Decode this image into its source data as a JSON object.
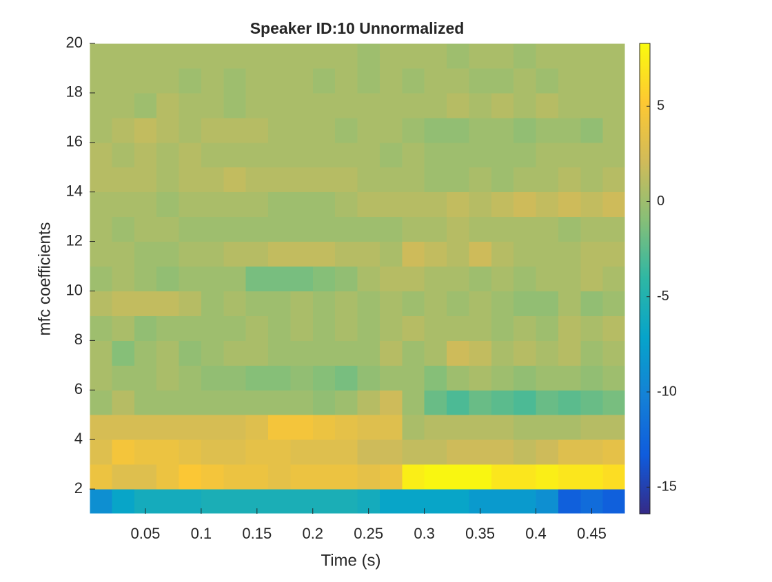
{
  "chart_data": {
    "type": "heatmap",
    "title": "Speaker ID:10 Unnormalized",
    "xlabel": "Time (s)",
    "ylabel": "mfc coefficients",
    "x": [
      0.01,
      0.03,
      0.05,
      0.07,
      0.09,
      0.11,
      0.13,
      0.15,
      0.17,
      0.19,
      0.21,
      0.23,
      0.25,
      0.27,
      0.29,
      0.31,
      0.33,
      0.35,
      0.37,
      0.39,
      0.41,
      0.43,
      0.45,
      0.47
    ],
    "y": [
      1.5,
      2.5,
      3.5,
      4.5,
      5.5,
      6.5,
      7.5,
      8.5,
      9.5,
      10.5,
      11.5,
      12.5,
      13.5,
      14.5,
      15.5,
      16.5,
      17.5,
      18.5,
      19.5
    ],
    "z": [
      [
        -9,
        -7,
        -6,
        -6,
        -6,
        -5.5,
        -5.5,
        -5.5,
        -5.5,
        -5.5,
        -5.5,
        -5.5,
        -6,
        -7,
        -7,
        -7,
        -7,
        -8,
        -8,
        -8,
        -9,
        -13,
        -12,
        -13
      ],
      [
        4,
        3,
        3,
        4,
        5,
        4.5,
        4,
        4,
        3.5,
        4,
        4,
        4,
        3.5,
        4,
        7.5,
        8,
        8,
        8,
        7,
        7,
        7.5,
        7,
        7,
        6.5
      ],
      [
        3,
        4.5,
        4,
        4,
        3.5,
        3,
        3,
        3.5,
        3.5,
        3,
        3,
        3,
        2,
        2,
        1.5,
        1.5,
        2,
        2,
        2,
        1.5,
        2,
        3,
        3,
        3.5
      ],
      [
        2.5,
        2.5,
        2.5,
        2.5,
        2.5,
        2.5,
        2.5,
        3,
        4.5,
        4.5,
        4,
        3.5,
        3,
        3,
        0.5,
        1,
        1,
        1,
        1,
        0.5,
        0.5,
        0.5,
        1,
        1
      ],
      [
        0,
        1,
        0,
        0,
        0,
        0,
        0,
        0,
        0,
        0,
        -0.5,
        0,
        1,
        2,
        0,
        -2,
        -3,
        -2,
        -2.5,
        -3,
        -2,
        -2.5,
        -2,
        -1.5
      ],
      [
        0.5,
        0,
        0,
        0.5,
        0,
        -0.5,
        -0.5,
        -1,
        -1,
        -0.5,
        -1,
        -1.5,
        -0.5,
        0,
        0,
        -1,
        0,
        0.5,
        0,
        -0.5,
        0,
        0,
        -0.5,
        0
      ],
      [
        0.5,
        -1,
        0,
        0.5,
        -0.5,
        0,
        0.5,
        0.5,
        0,
        0,
        0,
        0,
        0,
        1,
        0,
        0.5,
        2,
        1.5,
        0.5,
        1,
        0.5,
        1,
        0,
        0.5
      ],
      [
        0,
        0.5,
        -0.5,
        0,
        0,
        0,
        0,
        0.5,
        0,
        0.5,
        0,
        0.5,
        0,
        0.5,
        1,
        0.5,
        0.5,
        0.5,
        0,
        0.5,
        0,
        1,
        0.5,
        1
      ],
      [
        1,
        1.5,
        1.5,
        1.5,
        1,
        0,
        0.5,
        0,
        0,
        0.5,
        0,
        0.5,
        0,
        0.5,
        0,
        0.5,
        0,
        0.5,
        0,
        -0.5,
        -0.5,
        0.5,
        -0.5,
        0
      ],
      [
        0,
        0.5,
        0,
        -0.5,
        0,
        0,
        0,
        -1.5,
        -1.5,
        -1.5,
        -1,
        -0.5,
        0.5,
        1,
        1,
        0.5,
        0.5,
        0,
        0.5,
        0,
        0.5,
        0.5,
        1,
        0.5
      ],
      [
        0.5,
        0.5,
        0,
        0,
        0.5,
        0.5,
        1,
        1,
        1.5,
        1.5,
        1.5,
        1,
        1,
        0.5,
        2,
        1.5,
        1,
        2,
        1,
        0.5,
        0.5,
        0.5,
        1,
        1
      ],
      [
        0.5,
        0,
        0.5,
        0.5,
        0,
        0,
        0,
        0,
        0,
        0,
        0,
        0,
        0,
        0,
        0.5,
        0.5,
        1,
        0.5,
        0.5,
        0.5,
        0.5,
        0,
        0.5,
        0.5
      ],
      [
        0.5,
        0.5,
        0.5,
        0,
        0.5,
        0.5,
        0.5,
        0.5,
        0,
        0,
        0,
        0.5,
        1,
        1,
        1,
        1,
        1.5,
        1,
        1.5,
        2,
        1.5,
        2,
        1.5,
        2
      ],
      [
        1,
        1,
        1,
        0.5,
        1,
        1,
        1.5,
        1,
        1,
        1,
        1,
        1,
        0.5,
        0.5,
        0.5,
        0,
        0,
        0.5,
        0,
        0.5,
        0.5,
        1,
        0.5,
        1
      ],
      [
        1,
        0.5,
        1,
        0.5,
        1,
        0.5,
        0.5,
        0.5,
        0.5,
        0.5,
        0.5,
        0.5,
        0.5,
        0,
        0.5,
        0,
        0,
        0,
        0,
        0,
        0.5,
        0.5,
        0.5,
        0.5
      ],
      [
        0.5,
        1,
        1.5,
        1,
        0.5,
        1,
        1,
        1,
        0.5,
        0.5,
        0.5,
        0,
        0.5,
        0.5,
        0,
        -0.5,
        -0.5,
        0,
        0,
        -0.5,
        0,
        0,
        -0.5,
        0.5
      ],
      [
        0.5,
        0.5,
        0,
        1,
        0.5,
        0.5,
        0,
        0.5,
        0.5,
        0.5,
        0.5,
        0.5,
        0.5,
        0.5,
        0.5,
        0.5,
        1,
        0.5,
        1,
        0.5,
        1,
        0.5,
        0.5,
        0.5
      ],
      [
        0.5,
        0.5,
        0.5,
        0.5,
        0,
        0.5,
        0,
        0.5,
        0.5,
        0.5,
        0,
        0.5,
        0,
        0.5,
        0,
        0.5,
        0.5,
        0,
        0,
        0.5,
        0,
        0.5,
        0.5,
        0.5
      ],
      [
        0.5,
        0.5,
        0.5,
        0.5,
        0.5,
        0.5,
        0.5,
        0.5,
        0.5,
        0.5,
        0.5,
        0.5,
        0,
        0.5,
        0.5,
        0.5,
        0,
        0.5,
        0.5,
        0,
        0.5,
        0.5,
        0.5,
        0.5
      ]
    ],
    "xlim": [
      0,
      0.48
    ],
    "ylim": [
      1,
      20
    ],
    "xticks": [
      0.05,
      0.1,
      0.15,
      0.2,
      0.25,
      0.3,
      0.35,
      0.4,
      0.45
    ],
    "yticks": [
      2,
      4,
      6,
      8,
      10,
      12,
      14,
      16,
      18,
      20
    ],
    "clim": [
      -16.4,
      8.3
    ],
    "cticks": [
      -15,
      -10,
      -5,
      0,
      5
    ],
    "colormap": "parula"
  }
}
